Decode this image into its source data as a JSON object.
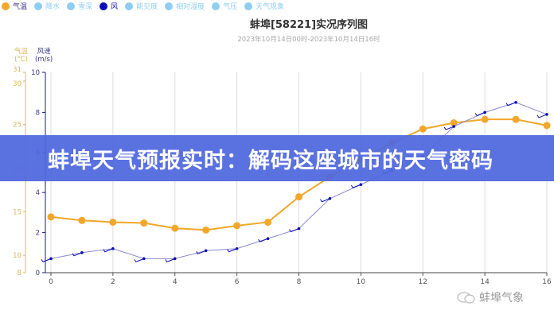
{
  "legend": [
    {
      "label": "气温",
      "color": "#f2a72a",
      "active": true
    },
    {
      "label": "降水",
      "color": "#8fcdf2",
      "active": false
    },
    {
      "label": "雪深",
      "color": "#8fcdf2",
      "active": false
    },
    {
      "label": "风",
      "color": "#0b0bb5",
      "active": true
    },
    {
      "label": "能见度",
      "color": "#8fcdf2",
      "active": false
    },
    {
      "label": "相对湿度",
      "color": "#8fcdf2",
      "active": false
    },
    {
      "label": "气压",
      "color": "#8fcdf2",
      "active": false
    },
    {
      "label": "天气现象",
      "color": "#8fcdf2",
      "active": false
    }
  ],
  "banner_text": "蚌埠天气预报实时：解码这座城市的天气密码",
  "watermark": "蚌埠气象",
  "chart_data": {
    "type": "line",
    "title": "蚌埠[58221]实况序列图",
    "subtitle": "2023年10月14日00时-2023年10月14日16时",
    "x": [
      0,
      1,
      2,
      3,
      4,
      5,
      6,
      7,
      8,
      9,
      10,
      11,
      12,
      13,
      14,
      15,
      16
    ],
    "xlim": [
      0,
      16
    ],
    "xticks": [
      "0",
      "2",
      "4",
      "6",
      "8",
      "10",
      "12",
      "14",
      "16"
    ],
    "grid": "vertical",
    "y_axes": [
      {
        "name_line1": "气温",
        "name_line2": "(°C)",
        "color": "#d9b85a",
        "lim": [
          8,
          31
        ],
        "ticks": [
          "8",
          "10",
          "15",
          "20",
          "25",
          "30",
          "31"
        ]
      },
      {
        "name_line1": "风速",
        "name_line2": "(m/s)",
        "color": "#3a3a8c",
        "lim": [
          0,
          10
        ],
        "ticks": [
          "0",
          "2",
          "4",
          "6",
          "8",
          "10"
        ]
      }
    ],
    "series": [
      {
        "name": "气温",
        "axis": 0,
        "color": "#f2a72a",
        "values": [
          14.4,
          14.0,
          13.8,
          13.7,
          13.1,
          12.9,
          13.4,
          13.8,
          16.7,
          19.0,
          21.0,
          22.9,
          24.5,
          25.2,
          25.6,
          25.6,
          24.9
        ]
      },
      {
        "name": "风",
        "axis": 1,
        "color": "#0b0bb5",
        "values": [
          0.7,
          1.0,
          1.2,
          0.7,
          0.7,
          1.1,
          1.2,
          1.7,
          2.2,
          3.7,
          4.4,
          5.1,
          5.8,
          7.3,
          8.0,
          8.5,
          7.9
        ]
      }
    ]
  }
}
